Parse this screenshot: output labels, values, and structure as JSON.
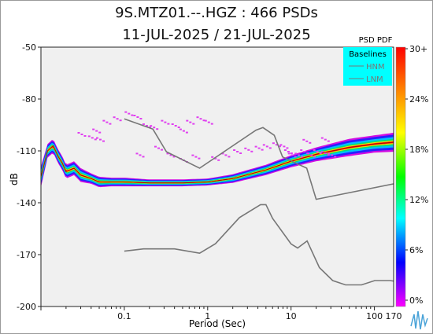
{
  "chart_data": {
    "type": "heatmap",
    "title_line1": "9S.MTZ01.--.HGZ : 466 PSDs",
    "title_line2": "11-JUL-2025 / 21-JUL-2025",
    "xlabel": "Period (Sec)",
    "ylabel": "dB",
    "x_scale": "log",
    "xlim": [
      0.01,
      170
    ],
    "ylim": [
      -200,
      -50
    ],
    "x_ticks": [
      {
        "value": 0.1,
        "label": "0.1"
      },
      {
        "value": 1,
        "label": "1"
      },
      {
        "value": 10,
        "label": "10"
      },
      {
        "value": 100,
        "label": "100"
      },
      {
        "value": 170,
        "label": "170"
      }
    ],
    "y_ticks": [
      -50,
      -80,
      -110,
      -140,
      -170,
      -200
    ],
    "colorbar": {
      "title": "PSD PDF",
      "tick_labels": [
        "30+",
        "24%",
        "18%",
        "12%",
        "6%",
        "0%"
      ],
      "colors": [
        "#ff0000",
        "#ff7f00",
        "#ffff00",
        "#00ff00",
        "#00ffff",
        "#0000ff",
        "#ff00ff"
      ]
    },
    "legend": {
      "title": "Baselines",
      "entries": [
        "HNM",
        "LNM"
      ],
      "placement": "top-right",
      "background": "#00ffff"
    },
    "mode_curve": {
      "x": [
        0.01,
        0.012,
        0.014,
        0.016,
        0.018,
        0.02,
        0.025,
        0.03,
        0.04,
        0.05,
        0.07,
        0.1,
        0.2,
        0.5,
        1,
        2,
        5,
        10,
        20,
        50,
        100,
        170
      ],
      "y": [
        -125,
        -110,
        -107,
        -113,
        -117,
        -122,
        -120,
        -124,
        -126,
        -128,
        -128,
        -128,
        -128.5,
        -128.5,
        -128,
        -126,
        -121,
        -116,
        -112,
        -108,
        -106,
        -105
      ]
    },
    "spread_db": [
      6,
      4,
      4,
      4,
      4,
      4,
      4,
      4,
      3,
      3,
      2.5,
      2.5,
      2,
      2,
      2,
      2.5,
      3,
      3.5,
      4,
      5,
      5,
      5.5
    ],
    "outliers": {
      "x": [
        0.045,
        0.06,
        0.08,
        0.11,
        0.14,
        0.18,
        0.22,
        0.3,
        0.4,
        0.5,
        0.6,
        0.8,
        1.0,
        0.15,
        0.25,
        0.35,
        0.5,
        0.7,
        1.2,
        1.6,
        2.2,
        3,
        4,
        5,
        6.5,
        8,
        9,
        10,
        12,
        14,
        17,
        20,
        25,
        30,
        15,
        25,
        0.03,
        0.04,
        0.05
      ],
      "y": [
        -98,
        -93,
        -91,
        -88,
        -90,
        -95,
        -96,
        -93,
        -95,
        -98,
        -93,
        -91,
        -93,
        -112,
        -108,
        -112,
        -115,
        -113,
        -114,
        -112,
        -110,
        -109,
        -108,
        -107,
        -106,
        -107,
        -110,
        -112,
        -112,
        -110,
        -112,
        -110,
        -111,
        -112,
        -104,
        -103,
        -100,
        -102,
        -103
      ]
    },
    "nhnm": {
      "x": [
        0.1,
        0.22,
        0.32,
        0.8,
        3.8,
        4.6,
        6.3,
        7.9,
        15.4,
        20,
        354.8
      ],
      "y": [
        -91.5,
        -97.4,
        -110.5,
        -120,
        -98,
        -96.5,
        -101,
        -113.5,
        -120,
        -138,
        -126
      ]
    },
    "nlnm": {
      "x": [
        0.1,
        0.17,
        0.4,
        0.8,
        1.24,
        2.4,
        4.3,
        5,
        6,
        10,
        12,
        15.6,
        21.9,
        31.6,
        45,
        70,
        101,
        154,
        328
      ],
      "y": [
        -168,
        -166.7,
        -166.7,
        -169.2,
        -163.7,
        -148.6,
        -141.1,
        -141.1,
        -149,
        -163.8,
        -166.2,
        -162.1,
        -177.5,
        -185,
        -187.5,
        -187.5,
        -185,
        -185,
        -187.5
      ]
    }
  }
}
